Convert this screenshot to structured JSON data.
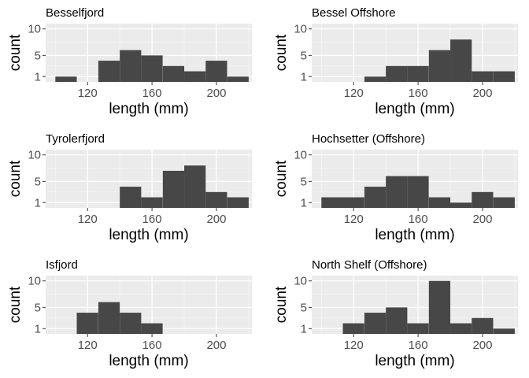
{
  "colors": {
    "panel_background": "#ebebeb",
    "grid_major": "#ffffff",
    "grid_minor": "#f5f5f5",
    "bar_fill": "#474747",
    "tick_mark": "#333333",
    "text": "#000000",
    "tick_text": "#4d4d4d"
  },
  "chart_data": [
    {
      "type": "bar",
      "title": "Besselfjord",
      "xlabel": "length (mm)",
      "ylabel": "count",
      "xlim": [
        94,
        222
      ],
      "ylim": [
        0,
        11
      ],
      "x_ticks": [
        120,
        160,
        200
      ],
      "y_ticks": [
        1,
        5,
        10
      ],
      "grid": true,
      "bin_width": 13.3,
      "bins": [
        {
          "x0": 100,
          "count": 1
        },
        {
          "x0": 113.3,
          "count": 0
        },
        {
          "x0": 126.7,
          "count": 4
        },
        {
          "x0": 140,
          "count": 6
        },
        {
          "x0": 153.3,
          "count": 5
        },
        {
          "x0": 166.7,
          "count": 3
        },
        {
          "x0": 180,
          "count": 2
        },
        {
          "x0": 193.3,
          "count": 4
        },
        {
          "x0": 206.7,
          "count": 1
        }
      ]
    },
    {
      "type": "bar",
      "title": "Bessel Offshore",
      "xlabel": "length (mm)",
      "ylabel": "count",
      "xlim": [
        94,
        222
      ],
      "ylim": [
        0,
        11
      ],
      "x_ticks": [
        120,
        160,
        200
      ],
      "y_ticks": [
        1,
        5,
        10
      ],
      "grid": true,
      "bin_width": 13.3,
      "bins": [
        {
          "x0": 126.7,
          "count": 1
        },
        {
          "x0": 140,
          "count": 3
        },
        {
          "x0": 153.3,
          "count": 3
        },
        {
          "x0": 166.7,
          "count": 6
        },
        {
          "x0": 180,
          "count": 8
        },
        {
          "x0": 193.3,
          "count": 2
        },
        {
          "x0": 206.7,
          "count": 2
        }
      ]
    },
    {
      "type": "bar",
      "title": "Tyrolerfjord",
      "xlabel": "length (mm)",
      "ylabel": "count",
      "xlim": [
        94,
        222
      ],
      "ylim": [
        0,
        11
      ],
      "x_ticks": [
        120,
        160,
        200
      ],
      "y_ticks": [
        1,
        5,
        10
      ],
      "grid": true,
      "bin_width": 13.3,
      "bins": [
        {
          "x0": 140,
          "count": 4
        },
        {
          "x0": 153.3,
          "count": 2
        },
        {
          "x0": 166.7,
          "count": 7
        },
        {
          "x0": 180,
          "count": 8
        },
        {
          "x0": 193.3,
          "count": 3
        },
        {
          "x0": 206.7,
          "count": 2
        }
      ]
    },
    {
      "type": "bar",
      "title": "Hochsetter (Offshore)",
      "xlabel": "length (mm)",
      "ylabel": "count",
      "xlim": [
        94,
        222
      ],
      "ylim": [
        0,
        11
      ],
      "x_ticks": [
        120,
        160,
        200
      ],
      "y_ticks": [
        1,
        5,
        10
      ],
      "grid": true,
      "bin_width": 13.3,
      "bins": [
        {
          "x0": 100,
          "count": 2
        },
        {
          "x0": 113.3,
          "count": 2
        },
        {
          "x0": 126.7,
          "count": 4
        },
        {
          "x0": 140,
          "count": 6
        },
        {
          "x0": 153.3,
          "count": 6
        },
        {
          "x0": 166.7,
          "count": 2
        },
        {
          "x0": 180,
          "count": 1
        },
        {
          "x0": 193.3,
          "count": 3
        },
        {
          "x0": 206.7,
          "count": 2
        }
      ]
    },
    {
      "type": "bar",
      "title": "Isfjord",
      "xlabel": "length (mm)",
      "ylabel": "count",
      "xlim": [
        94,
        222
      ],
      "ylim": [
        0,
        11
      ],
      "x_ticks": [
        120,
        160,
        200
      ],
      "y_ticks": [
        1,
        5,
        10
      ],
      "grid": true,
      "bin_width": 13.3,
      "bins": [
        {
          "x0": 113.3,
          "count": 4
        },
        {
          "x0": 126.7,
          "count": 6
        },
        {
          "x0": 140,
          "count": 4
        },
        {
          "x0": 153.3,
          "count": 2
        }
      ]
    },
    {
      "type": "bar",
      "title": "North Shelf (Offshore)",
      "xlabel": "length (mm)",
      "ylabel": "count",
      "xlim": [
        94,
        222
      ],
      "ylim": [
        0,
        11
      ],
      "x_ticks": [
        120,
        160,
        200
      ],
      "y_ticks": [
        1,
        5,
        10
      ],
      "grid": true,
      "bin_width": 13.3,
      "bins": [
        {
          "x0": 113.3,
          "count": 2
        },
        {
          "x0": 126.7,
          "count": 4
        },
        {
          "x0": 140,
          "count": 5
        },
        {
          "x0": 153.3,
          "count": 2
        },
        {
          "x0": 166.7,
          "count": 10
        },
        {
          "x0": 180,
          "count": 2
        },
        {
          "x0": 193.3,
          "count": 3
        },
        {
          "x0": 206.7,
          "count": 1
        }
      ]
    }
  ]
}
